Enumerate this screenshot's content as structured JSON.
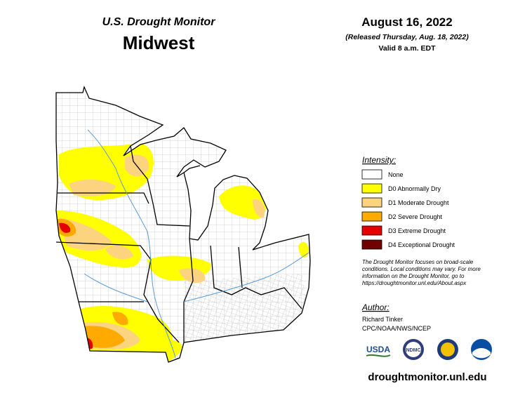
{
  "header": {
    "product": "U.S. Drought Monitor",
    "region": "Midwest",
    "date": "August 16, 2022",
    "released": "(Released Thursday, Aug. 18, 2022)",
    "valid": "Valid 8 a.m. EDT"
  },
  "legend": {
    "title": "Intensity:",
    "items": [
      {
        "label": "None",
        "color": "#ffffff"
      },
      {
        "label": "D0 Abnormally Dry",
        "color": "#ffff00"
      },
      {
        "label": "D1 Moderate Drought",
        "color": "#fcd37f"
      },
      {
        "label": "D2 Severe Drought",
        "color": "#ffaa00"
      },
      {
        "label": "D3 Extreme Drought",
        "color": "#e60000"
      },
      {
        "label": "D4 Exceptional Drought",
        "color": "#730000"
      }
    ]
  },
  "note": [
    "The Drought Monitor focuses on broad-scale",
    "conditions. Local conditions may vary. For more",
    "information on the Drought Monitor, go to",
    "https://droughtmonitor.unl.edu/About.aspx"
  ],
  "author": {
    "title": "Author:",
    "name": "Richard Tinker",
    "org": "CPC/NOAA/NWS/NCEP"
  },
  "logos": [
    "USDA",
    "NDMC"
  ],
  "url": "droughtmonitor.unl.edu"
}
